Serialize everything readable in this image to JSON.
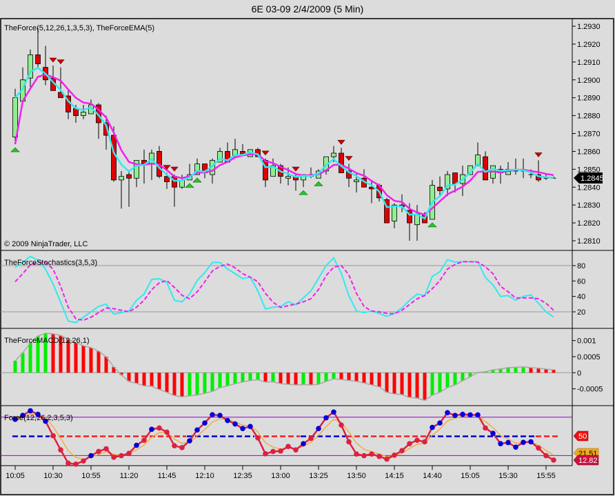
{
  "window": {
    "title": "6E 03-09  2/4/2009 (5 Min)"
  },
  "colors": {
    "background": "#dcdcdc",
    "up_candle": "#90ee90",
    "down_candle": "#e00000",
    "ema_fast": "#33e8f0",
    "ema_slow": "#f020f0",
    "buy_signal": "#22cc22",
    "sell_signal": "#cc0000",
    "macd_up": "#00ee00",
    "macd_down": "#ff0000",
    "force_line": "#dd2040",
    "force_signal": "#f0a830",
    "force_bands": "#9900cc",
    "dot_blue": "#0000dd",
    "dot_red": "#dd2040",
    "dash_blue": "#0000cc",
    "dash_red": "#ee2020"
  },
  "copyright": "© 2009 NinjaTrader, LLC",
  "chart_data": [
    {
      "type": "candlestick",
      "title": "TheForce(5,12,26,1,3,5,3), TheForceEMA(5)",
      "ylim": [
        1.2805,
        1.2935
      ],
      "yticks": [
        "1.2930",
        "1.2920",
        "1.2910",
        "1.2900",
        "1.2890",
        "1.2880",
        "1.2870",
        "1.2860",
        "1.2850",
        "1.2840",
        "1.2830",
        "1.2820",
        "1.2810"
      ],
      "last_price": "1.2845",
      "x_labels": [
        "10:05",
        "10:30",
        "10:55",
        "11:20",
        "11:45",
        "12:10",
        "12:35",
        "13:00",
        "13:25",
        "13:50",
        "14:15",
        "14:40",
        "15:05",
        "15:30",
        "15:55"
      ],
      "ohlc": [
        [
          1.2868,
          1.2895,
          1.2864,
          1.289
        ],
        [
          1.2888,
          1.2907,
          1.2888,
          1.29
        ],
        [
          1.2901,
          1.2917,
          1.2896,
          1.2914
        ],
        [
          1.2914,
          1.2929,
          1.2907,
          1.2909
        ],
        [
          1.2907,
          1.2919,
          1.2897,
          1.29
        ],
        [
          1.2901,
          1.2908,
          1.2894,
          1.2894
        ],
        [
          1.2893,
          1.2907,
          1.289,
          1.289
        ],
        [
          1.2891,
          1.2894,
          1.2878,
          1.2882
        ],
        [
          1.2884,
          1.2886,
          1.2876,
          1.288
        ],
        [
          1.288,
          1.2886,
          1.2878,
          1.2882
        ],
        [
          1.2881,
          1.2889,
          1.2881,
          1.2886
        ],
        [
          1.2886,
          1.2887,
          1.2867,
          1.2876
        ],
        [
          1.2876,
          1.288,
          1.2861,
          1.2869
        ],
        [
          1.2869,
          1.2874,
          1.2843,
          1.2844
        ],
        [
          1.2844,
          1.2849,
          1.2828,
          1.2846
        ],
        [
          1.2847,
          1.2849,
          1.2829,
          1.2845
        ],
        [
          1.2845,
          1.2855,
          1.284,
          1.2855
        ],
        [
          1.2855,
          1.2861,
          1.2842,
          1.2853
        ],
        [
          1.2853,
          1.2861,
          1.2844,
          1.2859
        ],
        [
          1.286,
          1.2863,
          1.2845,
          1.2846
        ],
        [
          1.2846,
          1.2848,
          1.2839,
          1.2843
        ],
        [
          1.2846,
          1.2847,
          1.2829,
          1.284
        ],
        [
          1.284,
          1.2847,
          1.2839,
          1.2844
        ],
        [
          1.2844,
          1.2853,
          1.2844,
          1.2847
        ],
        [
          1.2847,
          1.2856,
          1.2847,
          1.2853
        ],
        [
          1.2853,
          1.2853,
          1.2845,
          1.2848
        ],
        [
          1.2847,
          1.2856,
          1.2842,
          1.2855
        ],
        [
          1.2854,
          1.2862,
          1.2854,
          1.286
        ],
        [
          1.286,
          1.2865,
          1.2854,
          1.2854
        ],
        [
          1.2857,
          1.2867,
          1.2857,
          1.2861
        ],
        [
          1.286,
          1.2864,
          1.2858,
          1.2858
        ],
        [
          1.2857,
          1.2861,
          1.2857,
          1.2861
        ],
        [
          1.2861,
          1.2862,
          1.2857,
          1.2857
        ],
        [
          1.2855,
          1.2856,
          1.284,
          1.2844
        ],
        [
          1.2846,
          1.2856,
          1.2846,
          1.2852
        ],
        [
          1.2852,
          1.2853,
          1.2842,
          1.2846
        ],
        [
          1.2845,
          1.2851,
          1.2841,
          1.2846
        ],
        [
          1.2846,
          1.2847,
          1.2838,
          1.2844
        ],
        [
          1.2844,
          1.2847,
          1.284,
          1.2847
        ],
        [
          1.2847,
          1.2851,
          1.2845,
          1.2846
        ],
        [
          1.2845,
          1.285,
          1.2845,
          1.2849
        ],
        [
          1.2849,
          1.2857,
          1.2847,
          1.2857
        ],
        [
          1.2857,
          1.2863,
          1.2854,
          1.2859
        ],
        [
          1.2859,
          1.2862,
          1.2848,
          1.2848
        ],
        [
          1.2849,
          1.2853,
          1.284,
          1.2845
        ],
        [
          1.2843,
          1.2848,
          1.2837,
          1.2844
        ],
        [
          1.2845,
          1.285,
          1.284,
          1.284
        ],
        [
          1.284,
          1.2843,
          1.2831,
          1.2839
        ],
        [
          1.2841,
          1.2842,
          1.2832,
          1.2834
        ],
        [
          1.2833,
          1.2834,
          1.282,
          1.282
        ],
        [
          1.2821,
          1.2831,
          1.2817,
          1.283
        ],
        [
          1.283,
          1.2836,
          1.2826,
          1.2829
        ],
        [
          1.2827,
          1.2831,
          1.281,
          1.282
        ],
        [
          1.2819,
          1.283,
          1.281,
          1.2825
        ],
        [
          1.2825,
          1.2826,
          1.282,
          1.282
        ],
        [
          1.2822,
          1.2844,
          1.2822,
          1.2841
        ],
        [
          1.284,
          1.2846,
          1.2835,
          1.2838
        ],
        [
          1.2839,
          1.2849,
          1.2835,
          1.2847
        ],
        [
          1.2848,
          1.2848,
          1.2837,
          1.2842
        ],
        [
          1.2842,
          1.2852,
          1.2835,
          1.2847
        ],
        [
          1.2847,
          1.2852,
          1.2847,
          1.2852
        ],
        [
          1.2852,
          1.2865,
          1.2852,
          1.2858
        ],
        [
          1.2857,
          1.286,
          1.2844,
          1.2844
        ],
        [
          1.2845,
          1.2852,
          1.2842,
          1.2852
        ],
        [
          1.285,
          1.2852,
          1.2842,
          1.2848
        ],
        [
          1.2847,
          1.2854,
          1.2847,
          1.285
        ],
        [
          1.2849,
          1.2856,
          1.2847,
          1.285
        ],
        [
          1.2849,
          1.2856,
          1.2845,
          1.2849
        ],
        [
          1.2847,
          1.285,
          1.2845,
          1.2847
        ],
        [
          1.2847,
          1.2855,
          1.2843,
          1.2844
        ],
        [
          1.2845,
          1.2847,
          1.2844,
          1.2845
        ],
        [
          1.2845,
          1.2846,
          1.2845,
          1.2845
        ]
      ],
      "sell_signals": [
        5,
        6,
        20,
        21,
        33,
        37,
        43,
        44,
        69
      ],
      "buy_signals": [
        0,
        23,
        24,
        38,
        40,
        55
      ]
    },
    {
      "type": "line",
      "title": "TheForceStochastics(3,5,3)",
      "ylim": [
        0,
        100
      ],
      "yticks": [
        "80",
        "60",
        "40",
        "20"
      ],
      "gridlines": [
        80,
        20
      ],
      "k": [
        77.6,
        84,
        92,
        87,
        75.5,
        56,
        32.5,
        8,
        6,
        13,
        20,
        27,
        30,
        17,
        19,
        21,
        35,
        43,
        62,
        63,
        58,
        35,
        33,
        43,
        60.5,
        71,
        84,
        84,
        75.5,
        69.5,
        63,
        65,
        47,
        23.6,
        26,
        27,
        33,
        29,
        38,
        47,
        63.5,
        80,
        90,
        70,
        41,
        21,
        19,
        21,
        18,
        14,
        18,
        25,
        35,
        43,
        41,
        66,
        72,
        87.5,
        84.6,
        85,
        85,
        85,
        64.5,
        55,
        40,
        41,
        35,
        40,
        42,
        31,
        20,
        13
      ],
      "d": [
        59,
        69.5,
        81,
        84,
        84,
        75.5,
        53,
        26,
        11,
        9,
        13,
        19,
        25,
        24,
        22,
        20,
        26,
        35,
        48.7,
        57.6,
        60.6,
        51.6,
        41.5,
        37,
        46,
        59,
        73,
        79,
        82,
        77,
        69.5,
        65,
        59,
        44,
        32.5,
        25.7,
        28,
        30,
        33,
        37,
        49,
        67,
        78,
        80,
        68,
        44,
        27,
        21,
        20,
        18,
        17.5,
        22,
        29.5,
        37,
        41,
        50,
        60.6,
        75.5,
        81.5,
        85,
        85,
        84.6,
        78.5,
        69.5,
        53,
        46,
        38,
        38,
        38,
        37,
        31,
        22
      ]
    },
    {
      "type": "bar",
      "title": "TheForceMACD(12,26,1)",
      "yticks": [
        "0.001",
        "0.0005",
        "0",
        "-0.0005"
      ],
      "values": [
        0.00037,
        0.00062,
        0.00093,
        0.00114,
        0.00123,
        0.00121,
        0.00116,
        0.00104,
        0.00094,
        0.00084,
        0.00078,
        0.00067,
        0.0005,
        0.00018,
        -7e-05,
        -0.00027,
        -0.00033,
        -0.00041,
        -0.00042,
        -0.00052,
        -0.00061,
        -0.00071,
        -0.00075,
        -0.00072,
        -0.00069,
        -0.00064,
        -0.00058,
        -0.00047,
        -0.00041,
        -0.00034,
        -0.00029,
        -0.00024,
        -0.00022,
        -0.00029,
        -0.00028,
        -0.00034,
        -0.00036,
        -0.00038,
        -0.00037,
        -0.00038,
        -0.00036,
        -0.00027,
        -0.00019,
        -0.00021,
        -0.00024,
        -0.00027,
        -0.00032,
        -0.00038,
        -0.00044,
        -0.00061,
        -0.00066,
        -0.00068,
        -0.00077,
        -0.00079,
        -0.00086,
        -0.0007,
        -0.00061,
        -0.00046,
        -0.00038,
        -0.00025,
        -0.00013,
        1e-05,
        3e-05,
        9e-05,
        0.00012,
        0.00016,
        0.00017,
        0.00018,
        0.00016,
        0.00014,
        0.00011,
        9e-05
      ]
    },
    {
      "type": "line",
      "title": "Force(12,26,2,3,5,3)",
      "levels": [
        80,
        50,
        20
      ],
      "level_label": "50",
      "signal_value": "21.51",
      "last_value": "12.82",
      "values": [
        76.6,
        82.7,
        90,
        84.5,
        73.7,
        51,
        28.8,
        7.9,
        6.5,
        11.5,
        19.8,
        26.3,
        30.6,
        17.3,
        19.8,
        23.4,
        36,
        43.9,
        61,
        63,
        56.5,
        35.3,
        32.4,
        43,
        60,
        70.9,
        83.8,
        82.7,
        74.8,
        69.4,
        62.2,
        65.5,
        47.5,
        22.7,
        26.3,
        27,
        34.2,
        28.8,
        38.5,
        46.8,
        62.2,
        79,
        88,
        67.6,
        41.4,
        22.3,
        19.8,
        22.3,
        18.7,
        14.4,
        20.5,
        27.7,
        38.5,
        43.9,
        41.4,
        64,
        70.9,
        87,
        82.7,
        84.5,
        83.5,
        83.5,
        63,
        54.7,
        38.5,
        40.3,
        33.1,
        40.6,
        41.4,
        31.7,
        19.8,
        12.82
      ],
      "dot_colors": "bbbbbrrrrrbrrrrrbrbrrrrbbbbbbbbbrrrrrrbrbbbrrrrrrrrrrrrbbbbbbbrbbbbbbrrr",
      "midline_segments": [
        {
          "from": 0,
          "to": 4,
          "color": "blue"
        },
        {
          "from": 5,
          "to": 22,
          "color": "red"
        },
        {
          "from": 23,
          "to": 31,
          "color": "blue"
        },
        {
          "from": 32,
          "to": 37,
          "color": "red"
        },
        {
          "from": 38,
          "to": 43,
          "color": "blue"
        },
        {
          "from": 44,
          "to": 54,
          "color": "red"
        },
        {
          "from": 55,
          "to": 68,
          "color": "blue"
        },
        {
          "from": 69,
          "to": 71,
          "color": "red"
        }
      ]
    }
  ]
}
